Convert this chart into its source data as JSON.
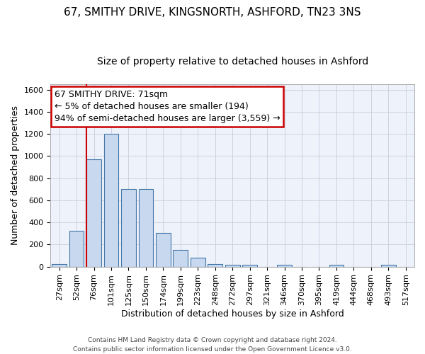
{
  "title_line1": "67, SMITHY DRIVE, KINGSNORTH, ASHFORD, TN23 3NS",
  "title_line2": "Size of property relative to detached houses in Ashford",
  "xlabel": "Distribution of detached houses by size in Ashford",
  "ylabel": "Number of detached properties",
  "bar_labels": [
    "27sqm",
    "52sqm",
    "76sqm",
    "101sqm",
    "125sqm",
    "150sqm",
    "174sqm",
    "199sqm",
    "223sqm",
    "248sqm",
    "272sqm",
    "297sqm",
    "321sqm",
    "346sqm",
    "370sqm",
    "395sqm",
    "419sqm",
    "444sqm",
    "468sqm",
    "493sqm",
    "517sqm"
  ],
  "bar_values": [
    25,
    325,
    970,
    1200,
    700,
    700,
    305,
    150,
    80,
    25,
    15,
    15,
    0,
    15,
    0,
    0,
    15,
    0,
    0,
    15,
    0
  ],
  "bar_color": "#c8d8ee",
  "bar_edge_color": "#4477aa",
  "grid_color": "#ccccdd",
  "bg_color": "#eef2fb",
  "red_line_index": 2,
  "annotation_line1": "67 SMITHY DRIVE: 71sqm",
  "annotation_line2": "← 5% of detached houses are smaller (194)",
  "annotation_line3": "94% of semi-detached houses are larger (3,559) →",
  "annotation_box_color": "#ffffff",
  "annotation_border_color": "#cc0000",
  "footer_text": "Contains HM Land Registry data © Crown copyright and database right 2024.\nContains public sector information licensed under the Open Government Licence v3.0.",
  "ylim": [
    0,
    1650
  ],
  "yticks": [
    0,
    200,
    400,
    600,
    800,
    1000,
    1200,
    1400,
    1600
  ],
  "title1_fontsize": 11,
  "title2_fontsize": 10,
  "ylabel_fontsize": 9,
  "xlabel_fontsize": 9,
  "tick_fontsize": 8,
  "annot_fontsize": 9
}
